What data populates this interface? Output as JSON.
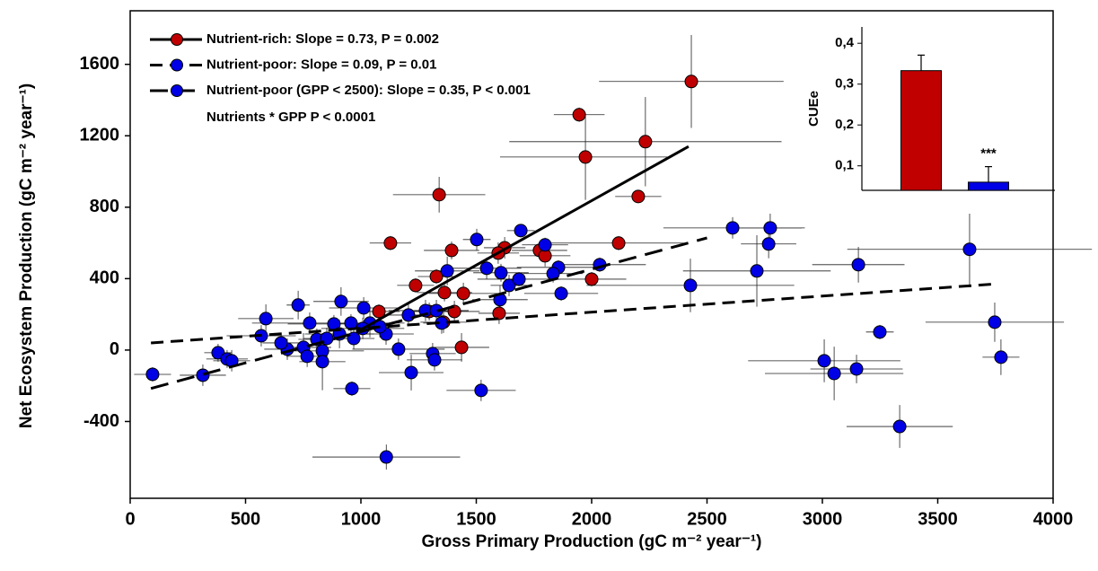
{
  "chart_data": [
    {
      "type": "scatter",
      "x_label": "Gross Primary Production (gC m⁻² year⁻¹)",
      "y_label": "Net Ecosystem Production (gC m⁻² year⁻¹)",
      "xlim": [
        0,
        4000
      ],
      "ylim": [
        -830,
        1900
      ],
      "xticks": [
        0,
        500,
        1000,
        1500,
        2000,
        2500,
        3000,
        3500,
        4000
      ],
      "yticks": [
        -400,
        0,
        400,
        800,
        1200,
        1600
      ],
      "annotation": "Nutrients * GPP P < 0.0001",
      "series": [
        {
          "name": "Nutrient-rich: Slope = 0.73, P = 0.002",
          "color": "#c00000",
          "dash": "none",
          "x": [
            2432,
            1946,
            1973,
            2233,
            1339,
            2202,
            1128,
            2117,
            1623,
            1595,
            1774,
            1798,
            1393,
            2000,
            1237,
            1327,
            1444,
            1362,
            1078,
            1296,
            1405,
            1358,
            1436,
            1599
          ],
          "values": [
            1504,
            1318,
            1081,
            1167,
            870,
            860,
            599,
            599,
            573,
            543,
            558,
            528,
            558,
            397,
            362,
            412,
            317,
            322,
            216,
            216,
            216,
            156,
            15,
            206
          ],
          "xerr": [
            400,
            110,
            370,
            590,
            200,
            100,
            90,
            300,
            90,
            90,
            120,
            110,
            120,
            150,
            80,
            80,
            150,
            120,
            90,
            90,
            110,
            100,
            120,
            90
          ],
          "yerr": [
            260,
            40,
            240,
            250,
            100,
            30,
            40,
            40,
            60,
            60,
            40,
            60,
            50,
            40,
            40,
            40,
            60,
            50,
            40,
            50,
            60,
            60,
            80,
            60
          ],
          "fit": {
            "x": [
              980,
              2420
            ],
            "y": [
              100,
              1140
            ]
          }
        },
        {
          "name": "Nutrient-poor: Slope = 0.09, P = 0.01",
          "color": "#0000e6",
          "dash": "14 8",
          "x": [
            97,
            315,
            381,
            420,
            1110,
            1502,
            1693,
            1798,
            1374,
            1545,
            1856,
            1833,
            1642,
            1685,
            1607,
            1603,
            2035,
            1868,
            2428,
            2611,
            2774,
            2767,
            2716,
            3156,
            3638,
            728,
            914,
            1012,
            1039,
            883,
            588,
            568,
            681,
            654,
            751,
            778,
            809,
            767,
            833,
            833,
            852,
            907,
            969,
            1008,
            1109,
            1082,
            1163,
            1206,
            1280,
            1327,
            1350,
            1311,
            1319,
            1218,
            1521,
            961,
            957,
            440,
            3008,
            3051,
            3148,
            3249,
            3335,
            3747,
            3774
          ],
          "values": [
            -136,
            -141,
            -15,
            -50,
            -599,
            619,
            669,
            589,
            443,
            458,
            463,
            428,
            362,
            397,
            433,
            282,
            478,
            317,
            362,
            684,
            684,
            594,
            443,
            478,
            564,
            252,
            272,
            236,
            151,
            146,
            176,
            80,
            5,
            40,
            15,
            151,
            60,
            -35,
            -5,
            -65,
            65,
            90,
            65,
            121,
            90,
            131,
            5,
            196,
            221,
            221,
            151,
            -20,
            -55,
            -126,
            -226,
            -216,
            151,
            -60,
            -60,
            -131,
            -106,
            101,
            -428,
            156,
            -40
          ],
          "xerr": [
            80,
            100,
            60,
            90,
            320,
            60,
            60,
            100,
            140,
            150,
            180,
            130,
            80,
            180,
            120,
            120,
            200,
            160,
            450,
            300,
            150,
            120,
            320,
            200,
            530,
            50,
            120,
            150,
            150,
            200,
            120,
            150,
            100,
            80,
            120,
            250,
            80,
            90,
            180,
            100,
            100,
            150,
            90,
            180,
            120,
            80,
            200,
            140,
            160,
            140,
            80,
            100,
            120,
            140,
            150,
            80,
            80,
            80,
            330,
            300,
            200,
            60,
            230,
            300,
            80
          ],
          "yerr": [
            40,
            60,
            50,
            50,
            70,
            60,
            30,
            40,
            80,
            60,
            40,
            50,
            60,
            40,
            50,
            80,
            40,
            40,
            150,
            60,
            80,
            80,
            200,
            100,
            200,
            80,
            80,
            60,
            80,
            50,
            80,
            60,
            60,
            50,
            80,
            60,
            60,
            60,
            80,
            160,
            60,
            80,
            60,
            60,
            60,
            60,
            60,
            60,
            60,
            60,
            60,
            60,
            60,
            100,
            60,
            40,
            50,
            60,
            120,
            150,
            80,
            40,
            120,
            110,
            100
          ],
          "fit": {
            "x": [
              90,
              3750
            ],
            "y": [
              40,
              370
            ]
          }
        },
        {
          "name": "Nutrient-poor (GPP < 2500): Slope = 0.35, P < 0.001",
          "color": "#0000e6",
          "dash": "20 10",
          "fit": {
            "x": [
              90,
              2500
            ],
            "y": [
              -215,
              628
            ]
          }
        }
      ]
    },
    {
      "type": "bar",
      "y_label": "CUEe",
      "categories": [
        null,
        null
      ],
      "values": [
        0.333,
        0.06
      ],
      "errors": [
        0.038,
        0.038
      ],
      "colors": [
        "#c00000",
        "#0000e6"
      ],
      "annotation": "***",
      "ylim": [
        0.04,
        0.44
      ],
      "yticks": [
        {
          "value": 0.1,
          "label": "0,1"
        },
        {
          "value": 0.2,
          "label": "0,2"
        },
        {
          "value": 0.3,
          "label": "0,3"
        },
        {
          "value": 0.4,
          "label": "0,4"
        }
      ]
    }
  ]
}
